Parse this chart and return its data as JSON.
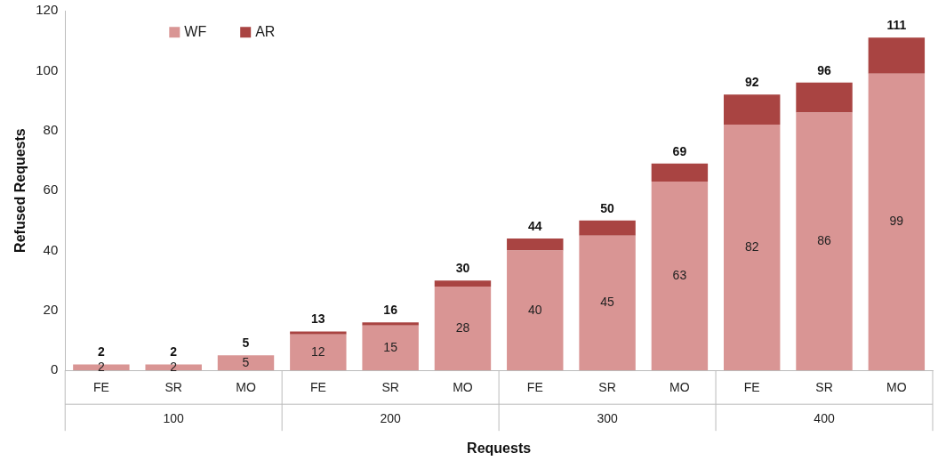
{
  "chart_data": {
    "type": "bar",
    "stacked": true,
    "xlabel": "Requests",
    "ylabel": "Refused Requests",
    "categories": [
      "FE",
      "SR",
      "MO",
      "FE",
      "SR",
      "MO",
      "FE",
      "SR",
      "MO",
      "FE",
      "SR",
      "MO"
    ],
    "annotations": [
      "100",
      "200",
      "300",
      "400"
    ],
    "series": [
      {
        "name": "WF",
        "color": "#d99594",
        "values": [
          2,
          2,
          5,
          12,
          15,
          28,
          40,
          45,
          63,
          82,
          86,
          99
        ],
        "value_labels": [
          "2",
          "2",
          "5",
          "12",
          "15",
          "28",
          "40",
          "45",
          "63",
          "82",
          "86",
          "99"
        ]
      },
      {
        "name": "AR",
        "color": "#a94442",
        "values": [
          0,
          0,
          0,
          1,
          1,
          2,
          4,
          5,
          6,
          10,
          10,
          12
        ]
      }
    ],
    "totals": [
      "2",
      "2",
      "5",
      "13",
      "16",
      "30",
      "44",
      "50",
      "69",
      "92",
      "96",
      "111"
    ],
    "ylim": [
      0,
      120
    ],
    "yticks": [
      0,
      20,
      40,
      60,
      80,
      100,
      120
    ],
    "grid": false,
    "legend": "top left"
  }
}
